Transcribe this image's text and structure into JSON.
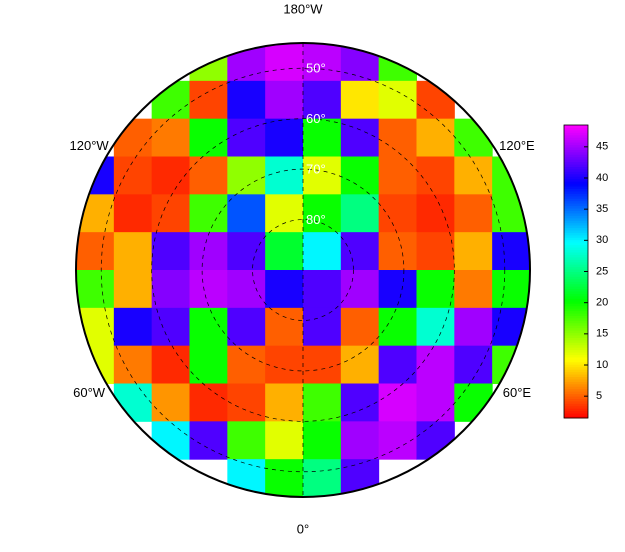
{
  "chart_data": {
    "type": "polar-map",
    "latlim": [
      45,
      90
    ],
    "latticks": [
      {
        "value": 50,
        "label": "50°"
      },
      {
        "value": 60,
        "label": "60°"
      },
      {
        "value": 70,
        "label": "70°"
      },
      {
        "value": 80,
        "label": "80°"
      }
    ],
    "lonticks": [
      {
        "value": -180,
        "label": "180°W"
      },
      {
        "value": -120,
        "label": "120°W"
      },
      {
        "value": 120,
        "label": "120°E"
      },
      {
        "value": -60,
        "label": "60°W"
      },
      {
        "value": 60,
        "label": "60°E"
      },
      {
        "value": 0,
        "label": "0°"
      }
    ],
    "clim": [
      1.5,
      48.5
    ],
    "cticks": [
      5,
      10,
      15,
      20,
      25,
      30,
      35,
      40,
      45
    ],
    "colormap": [
      "#ff0000",
      "#ffff00",
      "#00ff00",
      "#00ffff",
      "#0000ff",
      "#ff00ff"
    ],
    "grid": {
      "values": [
        [
          null,
          null,
          null,
          15,
          45,
          47,
          46,
          44,
          18,
          null,
          null,
          null
        ],
        [
          null,
          null,
          18,
          4,
          40,
          45,
          42,
          10,
          12,
          4,
          null,
          null
        ],
        [
          null,
          5,
          6,
          20,
          42,
          40,
          20,
          42,
          5,
          8,
          18,
          null
        ],
        [
          40,
          4,
          3,
          5,
          15,
          28,
          12,
          20,
          5,
          4,
          8,
          18
        ],
        [
          8,
          3,
          4,
          18,
          36,
          12,
          20,
          25,
          4,
          3,
          5,
          18
        ],
        [
          5,
          8,
          42,
          45,
          42,
          22,
          30,
          42,
          5,
          4,
          8,
          40
        ],
        [
          18,
          8,
          44,
          46,
          45,
          40,
          42,
          45,
          40,
          20,
          6,
          20
        ],
        [
          12,
          40,
          42,
          20,
          42,
          5,
          42,
          5,
          20,
          28,
          45,
          40
        ],
        [
          12,
          6,
          3,
          20,
          5,
          4,
          4,
          8,
          42,
          46,
          42,
          18
        ],
        [
          null,
          28,
          7,
          3,
          4,
          8,
          18,
          42,
          47,
          46,
          20,
          null
        ],
        [
          null,
          null,
          30,
          42,
          18,
          12,
          20,
          45,
          46,
          42,
          null,
          null
        ],
        [
          null,
          null,
          null,
          null,
          30,
          20,
          25,
          42,
          null,
          null,
          null,
          null
        ]
      ]
    }
  }
}
